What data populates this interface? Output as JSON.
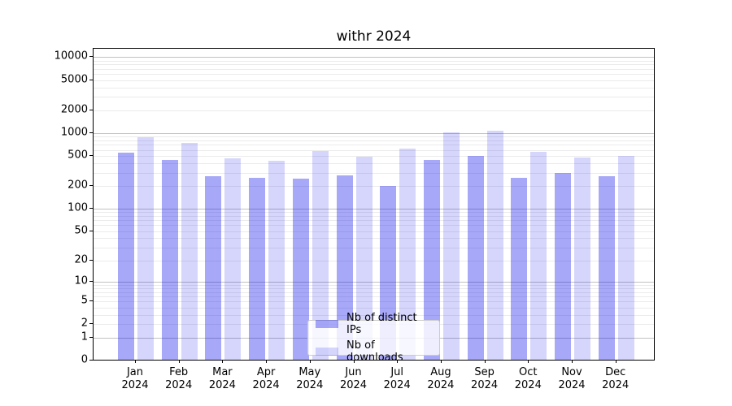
{
  "title": "withr 2024",
  "chart_data": {
    "type": "bar",
    "title": "withr 2024",
    "xlabel": "",
    "ylabel": "",
    "yscale": "log1p",
    "ylim": [
      0,
      13000
    ],
    "y_ticks": [
      0,
      1,
      2,
      5,
      10,
      20,
      50,
      100,
      200,
      500,
      1000,
      2000,
      5000,
      10000
    ],
    "y_tick_labels": [
      "0",
      "1",
      "2",
      "5",
      "10",
      "20",
      "50",
      "100",
      "200",
      "500",
      "1000",
      "2000",
      "5000",
      "10000"
    ],
    "major_grid_values": [
      1,
      10,
      100,
      1000,
      10000
    ],
    "grid": "on",
    "x_months": [
      "Jan",
      "Feb",
      "Mar",
      "Apr",
      "May",
      "Jun",
      "Jul",
      "Aug",
      "Sep",
      "Oct",
      "Nov",
      "Dec"
    ],
    "x_year": "2024",
    "categories": [
      "Jan 2024",
      "Feb 2024",
      "Mar 2024",
      "Apr 2024",
      "May 2024",
      "Jun 2024",
      "Jul 2024",
      "Aug 2024",
      "Sep 2024",
      "Oct 2024",
      "Nov 2024",
      "Dec 2024"
    ],
    "series": [
      {
        "name": "Nb of distinct IPs",
        "color": "rgba(0,0,235,0.34)",
        "values": [
          540,
          425,
          262,
          248,
          242,
          267,
          197,
          425,
          487,
          248,
          293,
          262
        ]
      },
      {
        "name": "Nb of downloads",
        "color": "rgba(0,0,235,0.16)",
        "values": [
          850,
          730,
          450,
          417,
          560,
          478,
          610,
          995,
          1055,
          545,
          468,
          487
        ]
      }
    ],
    "legend_position": "lower center"
  }
}
